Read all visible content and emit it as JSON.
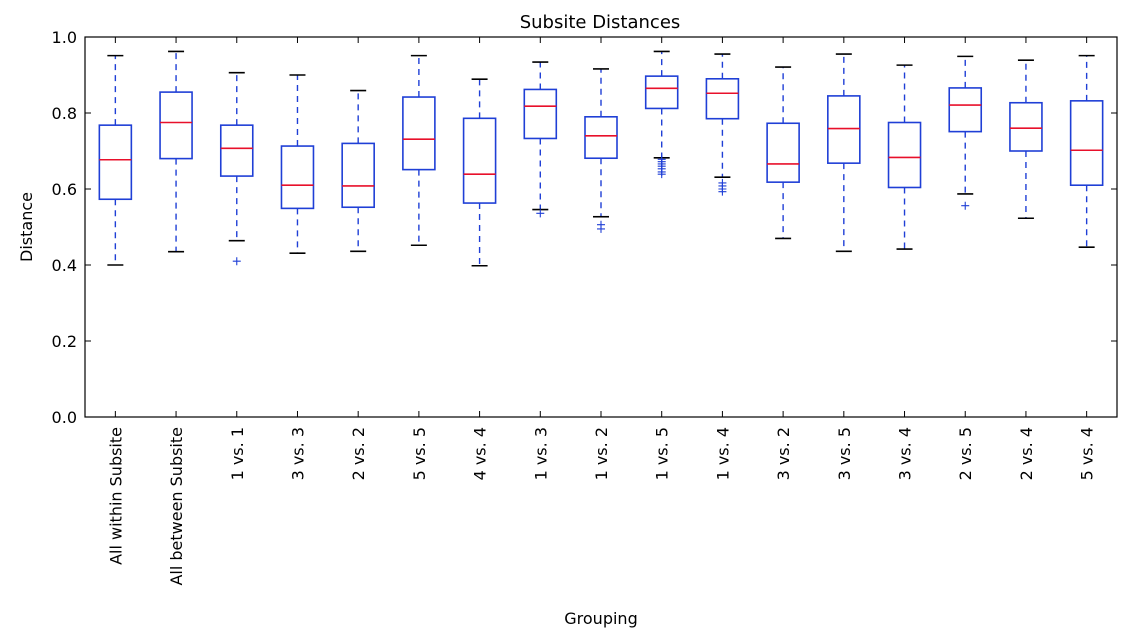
{
  "chart_data": {
    "type": "box",
    "title": "Subsite Distances",
    "xlabel": "Grouping",
    "ylabel": "Distance",
    "ylim": [
      0.0,
      1.0
    ],
    "yticks": [
      "0.0",
      "0.2",
      "0.4",
      "0.6",
      "0.8",
      "1.0"
    ],
    "grid": false,
    "colors": {
      "box": "#1f3fd6",
      "median": "#e8102b",
      "cap": "#000000",
      "flier": "#1f3fd6"
    },
    "categories": [
      "All within Subsite",
      "All between Subsite",
      "1 vs. 1",
      "3 vs. 3",
      "2 vs. 2",
      "5 vs. 5",
      "4 vs. 4",
      "1 vs. 3",
      "1 vs. 2",
      "1 vs. 5",
      "1 vs. 4",
      "3 vs. 2",
      "3 vs. 5",
      "3 vs. 4",
      "2 vs. 5",
      "2 vs. 4",
      "5 vs. 4"
    ],
    "boxes": [
      {
        "whislo": 0.4,
        "q1": 0.573,
        "med": 0.677,
        "q3": 0.768,
        "whishi": 0.951,
        "fliers": []
      },
      {
        "whislo": 0.435,
        "q1": 0.68,
        "med": 0.775,
        "q3": 0.855,
        "whishi": 0.962,
        "fliers": []
      },
      {
        "whislo": 0.464,
        "q1": 0.634,
        "med": 0.707,
        "q3": 0.768,
        "whishi": 0.906,
        "fliers": [
          0.41
        ]
      },
      {
        "whislo": 0.431,
        "q1": 0.549,
        "med": 0.61,
        "q3": 0.713,
        "whishi": 0.9,
        "fliers": []
      },
      {
        "whislo": 0.436,
        "q1": 0.552,
        "med": 0.608,
        "q3": 0.72,
        "whishi": 0.859,
        "fliers": []
      },
      {
        "whislo": 0.452,
        "q1": 0.651,
        "med": 0.731,
        "q3": 0.842,
        "whishi": 0.951,
        "fliers": []
      },
      {
        "whislo": 0.398,
        "q1": 0.563,
        "med": 0.639,
        "q3": 0.786,
        "whishi": 0.889,
        "fliers": []
      },
      {
        "whislo": 0.546,
        "q1": 0.733,
        "med": 0.818,
        "q3": 0.862,
        "whishi": 0.934,
        "fliers": [
          0.536
        ]
      },
      {
        "whislo": 0.527,
        "q1": 0.681,
        "med": 0.74,
        "q3": 0.79,
        "whishi": 0.916,
        "fliers": [
          0.506,
          0.495
        ]
      },
      {
        "whislo": 0.682,
        "q1": 0.812,
        "med": 0.865,
        "q3": 0.897,
        "whishi": 0.962,
        "fliers": [
          0.678,
          0.672,
          0.666,
          0.66,
          0.653,
          0.645,
          0.639
        ]
      },
      {
        "whislo": 0.631,
        "q1": 0.785,
        "med": 0.852,
        "q3": 0.89,
        "whishi": 0.955,
        "fliers": [
          0.616,
          0.608,
          0.6,
          0.593
        ]
      },
      {
        "whislo": 0.47,
        "q1": 0.618,
        "med": 0.666,
        "q3": 0.773,
        "whishi": 0.921,
        "fliers": []
      },
      {
        "whislo": 0.436,
        "q1": 0.668,
        "med": 0.759,
        "q3": 0.845,
        "whishi": 0.955,
        "fliers": []
      },
      {
        "whislo": 0.442,
        "q1": 0.604,
        "med": 0.683,
        "q3": 0.775,
        "whishi": 0.926,
        "fliers": []
      },
      {
        "whislo": 0.587,
        "q1": 0.751,
        "med": 0.821,
        "q3": 0.866,
        "whishi": 0.949,
        "fliers": [
          0.556
        ]
      },
      {
        "whislo": 0.523,
        "q1": 0.7,
        "med": 0.76,
        "q3": 0.827,
        "whishi": 0.939,
        "fliers": []
      },
      {
        "whislo": 0.447,
        "q1": 0.61,
        "med": 0.702,
        "q3": 0.832,
        "whishi": 0.951,
        "fliers": []
      }
    ]
  }
}
